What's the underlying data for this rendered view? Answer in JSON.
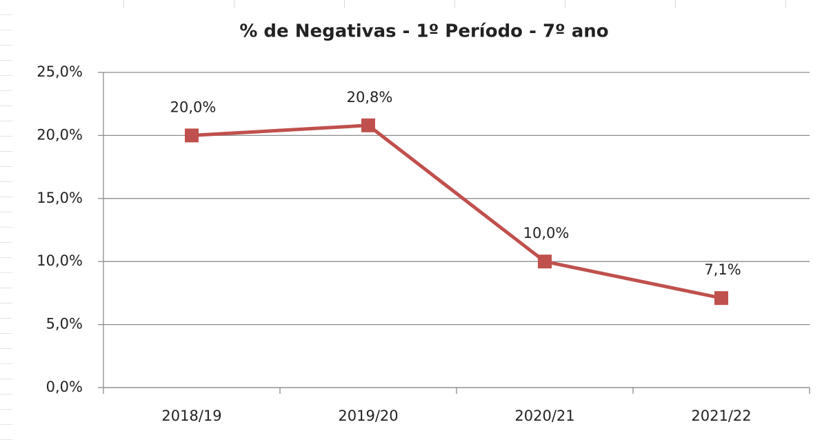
{
  "chart_data": {
    "type": "line",
    "title": "% de Negativas - 1º Período - 7º ano",
    "categories": [
      "2018/19",
      "2019/20",
      "2020/21",
      "2021/22"
    ],
    "series": [
      {
        "color": "#c0504d",
        "values": [
          20.0,
          20.8,
          10.0,
          7.1
        ],
        "value_labels": [
          "20,0%",
          "20,8%",
          "10,0%",
          "7,1%"
        ]
      }
    ],
    "ylim": [
      0,
      25
    ],
    "yticks": [
      {
        "value": 0,
        "label": "0,0%"
      },
      {
        "value": 5,
        "label": "5,0%"
      },
      {
        "value": 10,
        "label": "10,0%"
      },
      {
        "value": 15,
        "label": "15,0%"
      },
      {
        "value": 20,
        "label": "20,0%"
      },
      {
        "value": 25,
        "label": "25,0%"
      }
    ],
    "grid": true
  }
}
